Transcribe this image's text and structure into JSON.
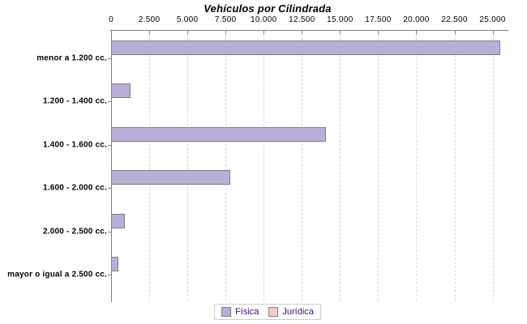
{
  "chart_data": {
    "type": "bar",
    "orientation": "horizontal",
    "title": "Vehículos por Cilindrada",
    "categories": [
      "menor a 1.200 cc.",
      "1.200 - 1.400 cc.",
      "1.400 - 1.600 cc.",
      "1.600 - 2.000 cc.",
      "2.000 - 2.500 cc.",
      "mayor o igual a 2.500 cc."
    ],
    "series": [
      {
        "name": "Física",
        "color": "#b8aed8",
        "values": [
          25500,
          1300,
          14100,
          7800,
          900,
          500
        ]
      },
      {
        "name": "Jurídica",
        "color": "#f8c8c8",
        "values": [
          0,
          0,
          0,
          0,
          0,
          0
        ]
      }
    ],
    "x_axis": {
      "min": 0,
      "max": 26000,
      "tick_interval": 2500,
      "tick_labels": [
        "0",
        "2.500",
        "5.000",
        "7.500",
        "10.000",
        "12.500",
        "15.000",
        "17.500",
        "20.000",
        "22.500",
        "25.000"
      ],
      "grid": "dashed-vertical"
    },
    "legend_position": "bottom"
  },
  "colors": {
    "bar_border": "#7f7f7f",
    "axis": "#808080",
    "gridline": "#d6d6d6",
    "title_text": "#000000",
    "tick_text": "#000000",
    "legend_text": "#3d0f7e",
    "legend_border": "#cccccc",
    "background": "#ffffff"
  }
}
